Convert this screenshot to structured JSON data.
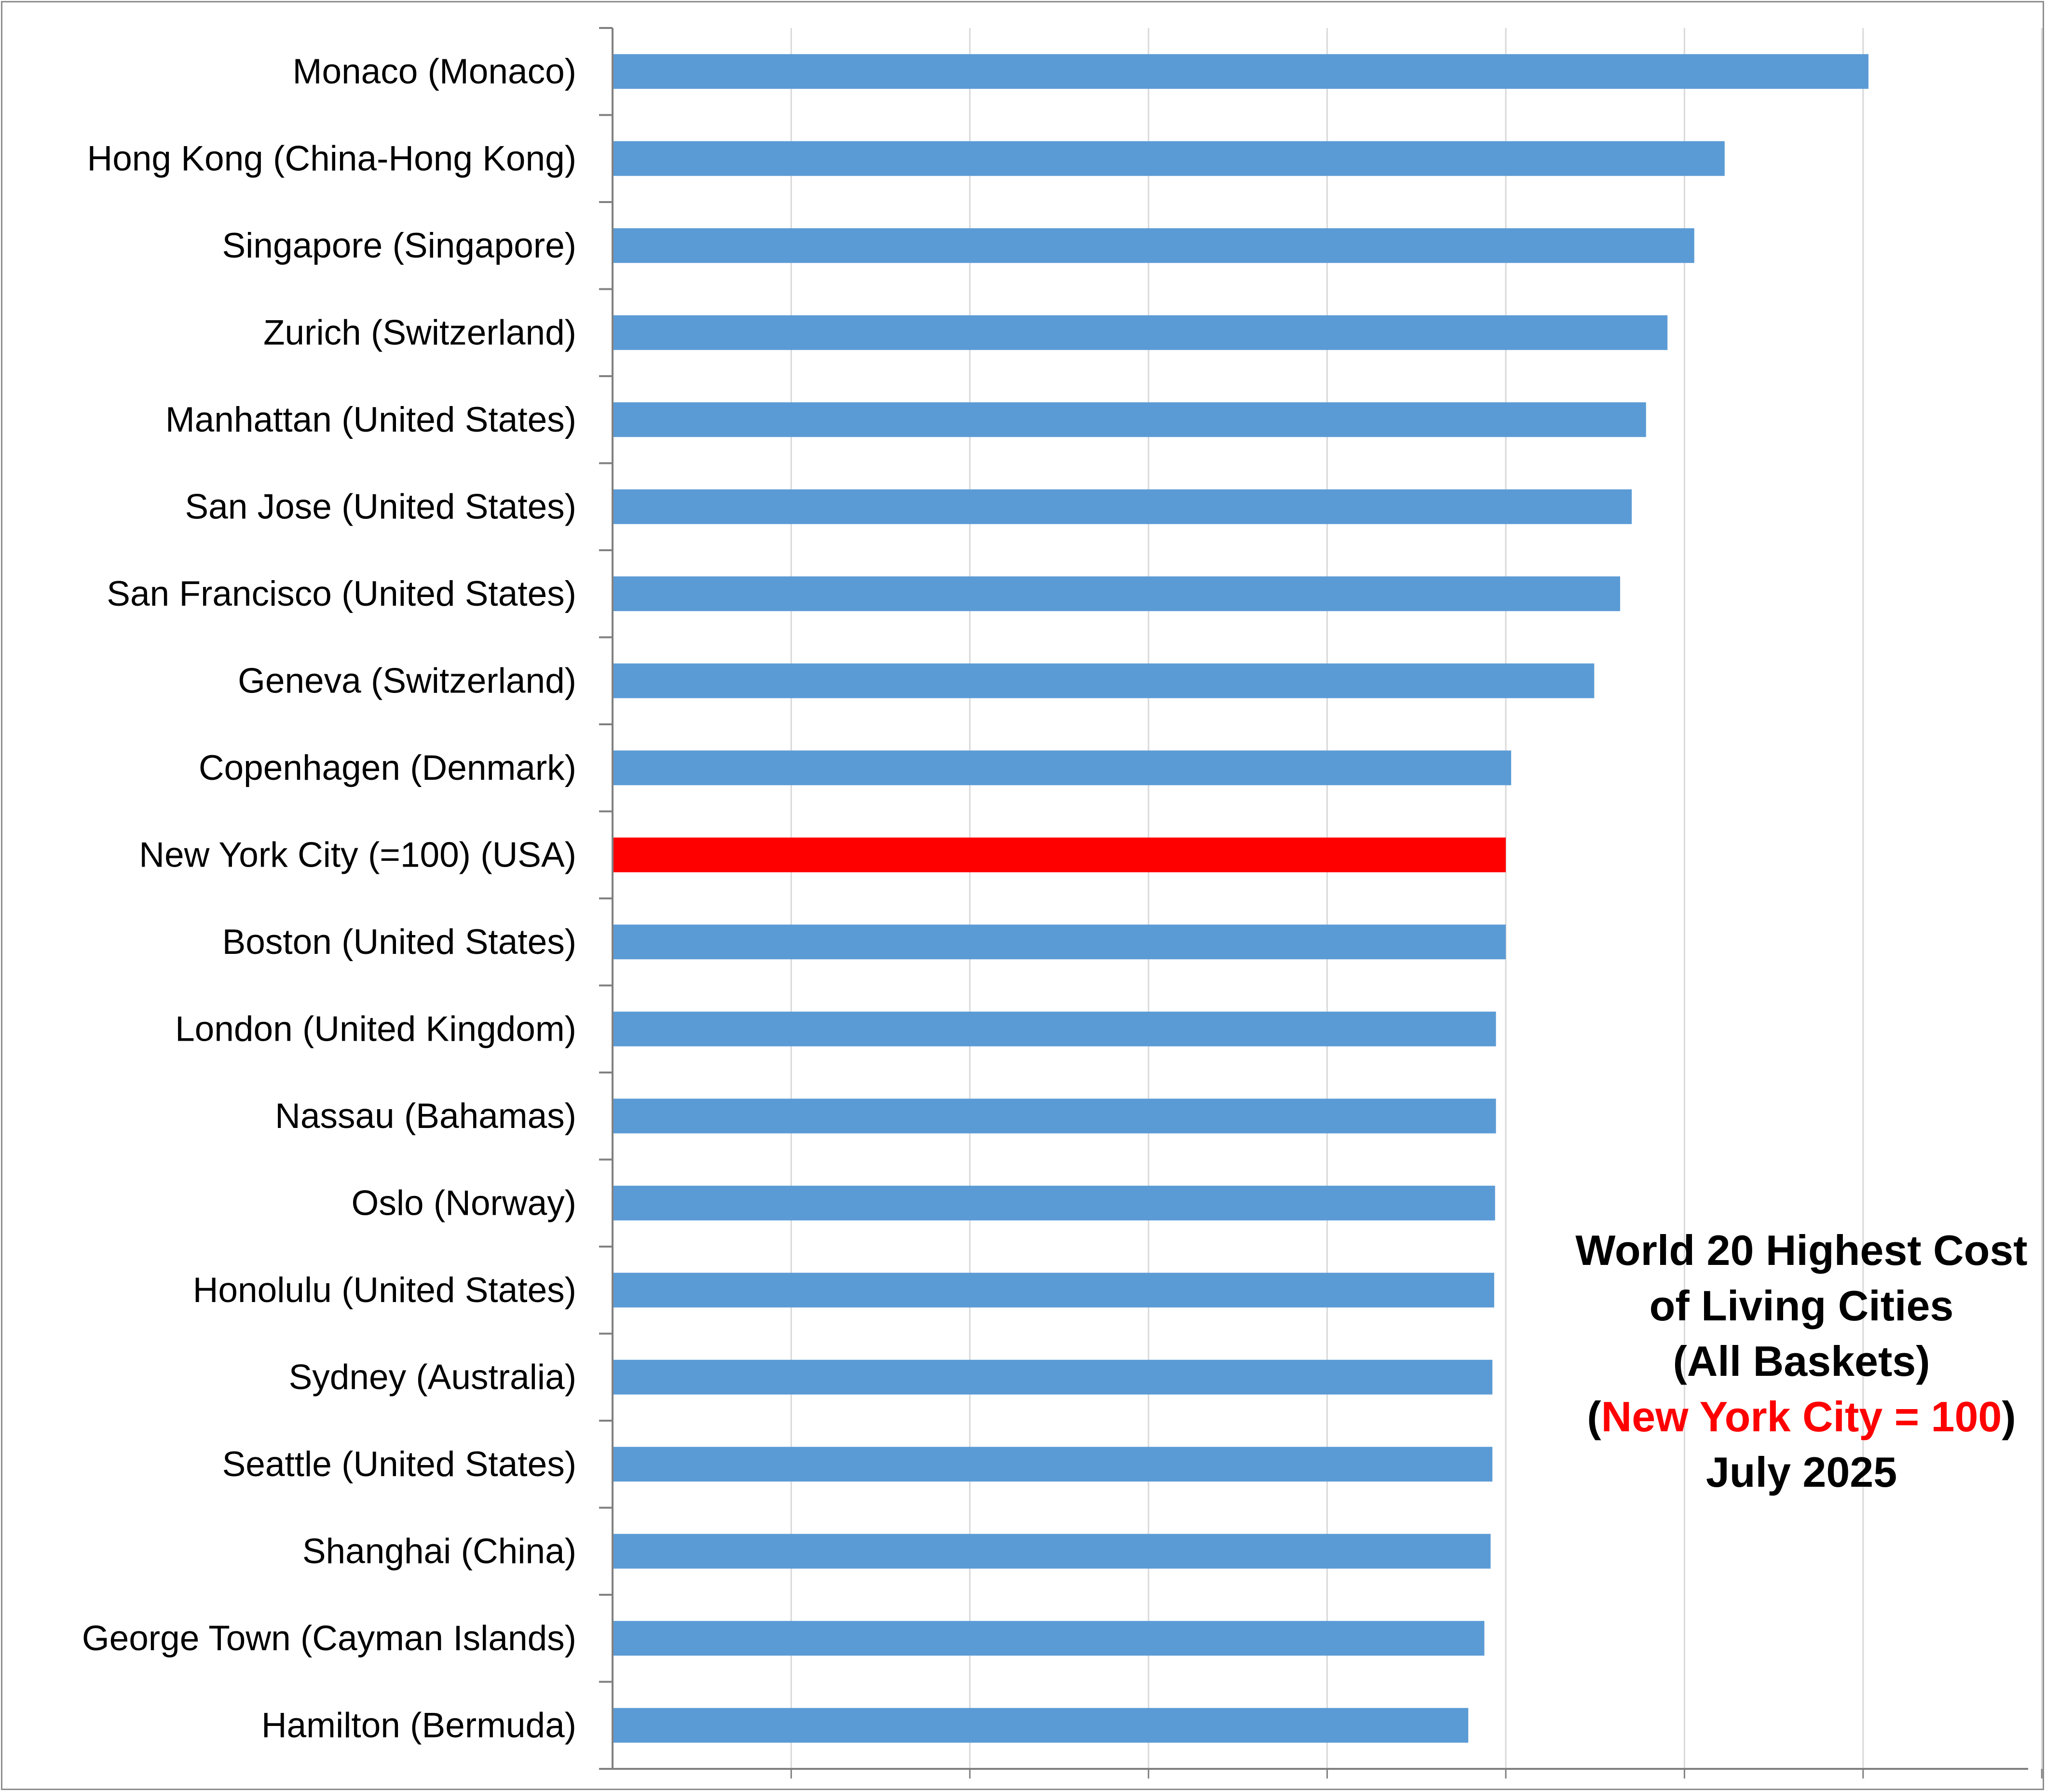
{
  "chart_data": {
    "type": "bar",
    "orientation": "horizontal",
    "title_lines": [
      "World 20 Highest Cost",
      "of Living Cities",
      "(All Baskets)"
    ],
    "subtitle": {
      "prefix": "(",
      "highlight": "New York City = 100",
      "suffix": ")"
    },
    "date": "July 2025",
    "categories": [
      "Monaco (Monaco)",
      "Hong Kong (China-Hong Kong)",
      "Singapore (Singapore)",
      "Zurich (Switzerland)",
      "Manhattan (United States)",
      "San Jose (United States)",
      "San Francisco (United States)",
      "Geneva (Switzerland)",
      "Copenhagen (Denmark)",
      "New York City (=100) (USA)",
      "Boston (United States)",
      "London (United Kingdom)",
      "Nassau (Bahamas)",
      "Oslo (Norway)",
      "Honolulu (United States)",
      "Sydney (Australia)",
      "Seattle (United States)",
      "Shanghai (China)",
      "George Town (Cayman Islands)",
      "Hamilton (Bermuda)"
    ],
    "values": [
      140.6,
      124.5,
      121.1,
      118.1,
      115.7,
      114.1,
      112.8,
      109.9,
      100.6,
      100,
      100,
      98.9,
      98.9,
      98.8,
      98.7,
      98.5,
      98.5,
      98.3,
      97.6,
      95.8
    ],
    "highlight_category": "New York City (=100) (USA)",
    "xlim": [
      0,
      160
    ],
    "x_gridlines": [
      20,
      40,
      60,
      80,
      100,
      120,
      140,
      160
    ],
    "grid": true,
    "legend": "none",
    "colors": {
      "bar": "#5b9bd5",
      "highlight": "#ff0000",
      "grid": "#d9d9d9",
      "axis": "#808080",
      "title_highlight": "#ff0000"
    }
  }
}
